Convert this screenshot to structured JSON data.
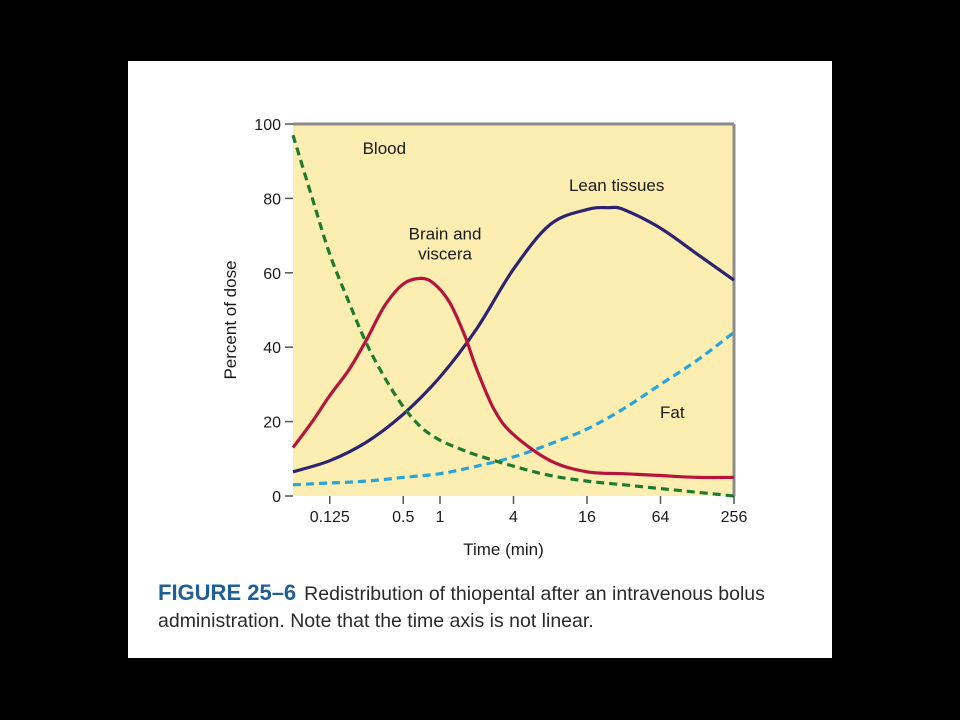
{
  "chart_data": {
    "type": "line",
    "xlabel": "Time (min)",
    "ylabel": "Percent of dose",
    "x_scale": "log2",
    "xlim": [
      0.0625,
      256
    ],
    "ylim": [
      0,
      100
    ],
    "x_ticks": [
      {
        "value": 0.125,
        "label": "0.125"
      },
      {
        "value": 0.5,
        "label": "0.5"
      },
      {
        "value": 1,
        "label": "1"
      },
      {
        "value": 4,
        "label": "4"
      },
      {
        "value": 16,
        "label": "16"
      },
      {
        "value": 64,
        "label": "64"
      },
      {
        "value": 256,
        "label": "256"
      }
    ],
    "y_ticks": [
      0,
      20,
      40,
      60,
      80,
      100
    ],
    "grid": false,
    "background": "#fbeeb0",
    "series": [
      {
        "name": "Blood",
        "color": "#1e7a2e",
        "dashed": true,
        "label": {
          "lines": [
            "Blood"
          ],
          "x": 0.35,
          "y": 92
        },
        "points": [
          [
            0.0625,
            97
          ],
          [
            0.09,
            80
          ],
          [
            0.125,
            65
          ],
          [
            0.18,
            52
          ],
          [
            0.25,
            41
          ],
          [
            0.35,
            32
          ],
          [
            0.5,
            24
          ],
          [
            0.7,
            18.5
          ],
          [
            1,
            15
          ],
          [
            1.5,
            12.5
          ],
          [
            2,
            11
          ],
          [
            4,
            8
          ],
          [
            8,
            5.5
          ],
          [
            16,
            4
          ],
          [
            32,
            3
          ],
          [
            64,
            2
          ],
          [
            128,
            1
          ],
          [
            256,
            0
          ]
        ]
      },
      {
        "name": "Brain and viscera",
        "color": "#b5153c",
        "dashed": false,
        "label": {
          "lines": [
            "Brain and",
            "viscera"
          ],
          "x": 1.1,
          "y": 69
        },
        "points": [
          [
            0.0625,
            13
          ],
          [
            0.09,
            20
          ],
          [
            0.125,
            27
          ],
          [
            0.18,
            34
          ],
          [
            0.25,
            42
          ],
          [
            0.35,
            51
          ],
          [
            0.5,
            57
          ],
          [
            0.7,
            58.5
          ],
          [
            0.9,
            57
          ],
          [
            1.2,
            52
          ],
          [
            1.6,
            43
          ],
          [
            2,
            34
          ],
          [
            2.8,
            23
          ],
          [
            4,
            16.5
          ],
          [
            8,
            9.5
          ],
          [
            16,
            6.5
          ],
          [
            32,
            6
          ],
          [
            64,
            5.5
          ],
          [
            128,
            5
          ],
          [
            256,
            5
          ]
        ]
      },
      {
        "name": "Lean tissues",
        "color": "#2c2470",
        "dashed": false,
        "label": {
          "lines": [
            "Lean tissues"
          ],
          "x": 28,
          "y": 82
        },
        "points": [
          [
            0.0625,
            6.5
          ],
          [
            0.125,
            9.5
          ],
          [
            0.25,
            14.5
          ],
          [
            0.5,
            22
          ],
          [
            1,
            32
          ],
          [
            2,
            45
          ],
          [
            4,
            61
          ],
          [
            8,
            73
          ],
          [
            16,
            77
          ],
          [
            24,
            77.5
          ],
          [
            32,
            77
          ],
          [
            64,
            72
          ],
          [
            128,
            65
          ],
          [
            256,
            58
          ]
        ]
      },
      {
        "name": "Fat",
        "color": "#29a3d8",
        "dashed": true,
        "label": {
          "lines": [
            "Fat"
          ],
          "x": 80,
          "y": 21
        },
        "points": [
          [
            0.0625,
            3
          ],
          [
            0.125,
            3.5
          ],
          [
            0.25,
            4
          ],
          [
            0.5,
            5
          ],
          [
            1,
            6
          ],
          [
            2,
            8
          ],
          [
            4,
            10.5
          ],
          [
            8,
            14
          ],
          [
            16,
            18
          ],
          [
            32,
            23.5
          ],
          [
            64,
            30
          ],
          [
            128,
            36.5
          ],
          [
            256,
            44
          ]
        ]
      }
    ]
  },
  "caption": {
    "figure_label": "FIGURE 25–6",
    "text": "Redistribution of thiopental after an intravenous bolus administration. Note that the time axis is not linear."
  }
}
